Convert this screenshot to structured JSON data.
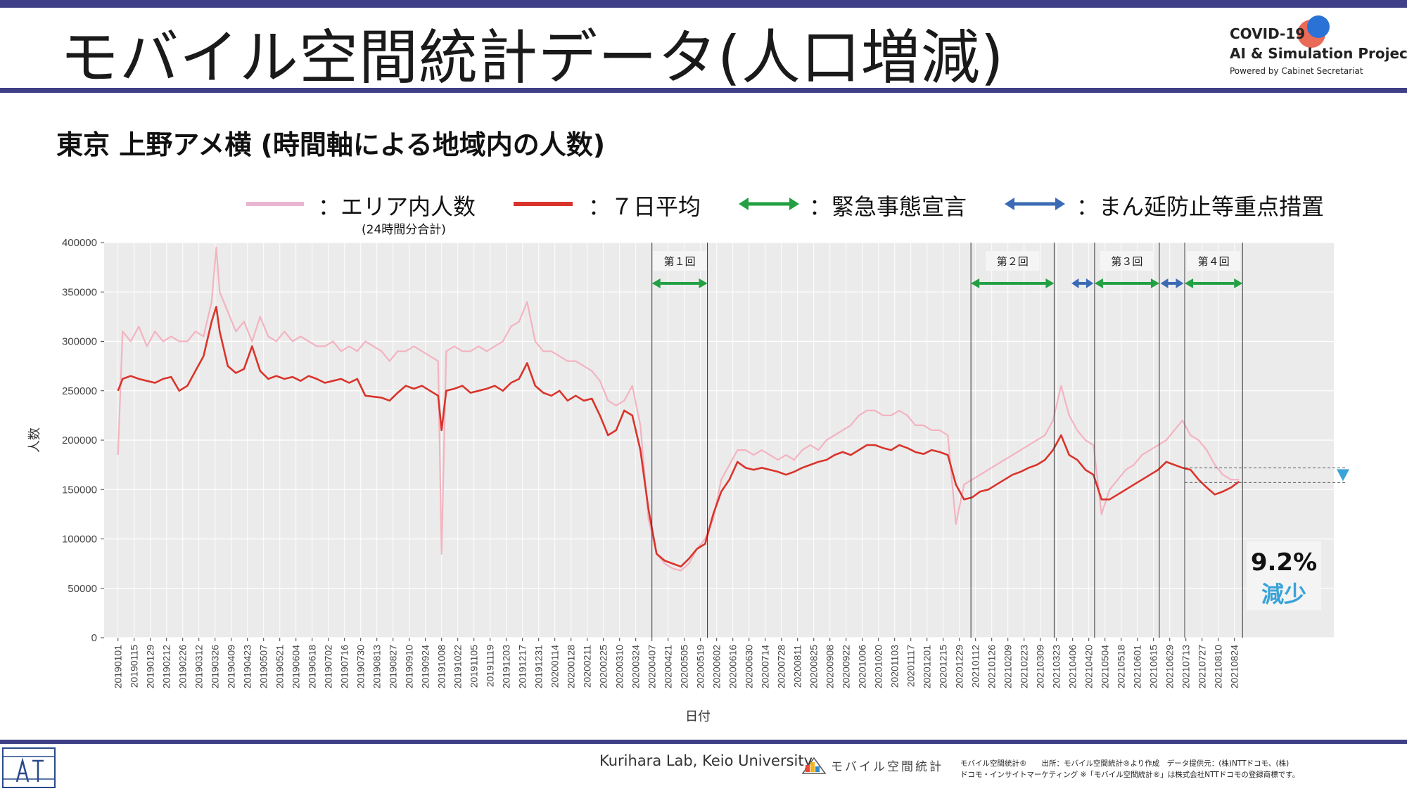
{
  "header": {
    "title": "モバイル空間統計データ(人口増減)",
    "logo_line1": "COVID-19",
    "logo_line2": "AI & Simulation Project",
    "logo_line3": "Powered by Cabinet Secretariat"
  },
  "subtitle": "東京 上野アメ横 (時間軸による地域内の人数)",
  "legend": {
    "daily_label": "：エリア内人数",
    "daily_sub": "(24時間分合計)",
    "avg_label": "：７日平均",
    "emergency_label": "：緊急事態宣言",
    "semi_label": "：まん延防止等重点措置"
  },
  "colors": {
    "daily": "#f4a9b8",
    "avg": "#d9342b",
    "emergency": "#22a043",
    "semi": "#3b6bb5",
    "plot_bg": "#ebebeb",
    "accent": "#3aa3d8",
    "header_bar": "#3e3f86"
  },
  "callout": {
    "percent": "9.2%",
    "decrease": "減少"
  },
  "chart_data": {
    "type": "line",
    "xlabel": "日付",
    "ylabel": "人数",
    "ylim": [
      0,
      400000
    ],
    "yticks": [
      0,
      50000,
      100000,
      150000,
      200000,
      250000,
      300000,
      350000,
      400000
    ],
    "x_tick_labels": [
      "20190101",
      "20190115",
      "20190129",
      "20190212",
      "20190226",
      "20190312",
      "20190326",
      "20190409",
      "20190423",
      "20190507",
      "20190521",
      "20190604",
      "20190618",
      "20190702",
      "20190716",
      "20190730",
      "20190813",
      "20190827",
      "20190910",
      "20190924",
      "20191008",
      "20191022",
      "20191105",
      "20191119",
      "20191203",
      "20191217",
      "20191231",
      "20200114",
      "20200128",
      "20200211",
      "20200225",
      "20200310",
      "20200324",
      "20200407",
      "20200421",
      "20200505",
      "20200519",
      "20200602",
      "20200616",
      "20200630",
      "20200714",
      "20200728",
      "20200811",
      "20200825",
      "20200908",
      "20200922",
      "20201006",
      "20201020",
      "20201103",
      "20201117",
      "20201201",
      "20201215",
      "20201229",
      "20210112",
      "20210126",
      "20210209",
      "20210223",
      "20210309",
      "20210323",
      "20210406",
      "20210420",
      "20210504",
      "20210518",
      "20210601",
      "20210615",
      "20210629",
      "20210713",
      "20210727",
      "20210810",
      "20210824"
    ],
    "grid": true,
    "legend_position": "top",
    "series": [
      {
        "name": "エリア内人数",
        "note": "(24時間分合計)",
        "style": "daily",
        "x": [
          "20190101",
          "20190105",
          "20190112",
          "20190119",
          "20190126",
          "20190202",
          "20190209",
          "20190216",
          "20190223",
          "20190302",
          "20190309",
          "20190316",
          "20190323",
          "20190327",
          "20190330",
          "20190406",
          "20190413",
          "20190420",
          "20190427",
          "20190504",
          "20190511",
          "20190518",
          "20190525",
          "20190601",
          "20190608",
          "20190615",
          "20190622",
          "20190629",
          "20190706",
          "20190713",
          "20190720",
          "20190727",
          "20190803",
          "20190810",
          "20190817",
          "20190824",
          "20190831",
          "20190907",
          "20190914",
          "20190921",
          "20190928",
          "20191005",
          "20191008",
          "20191012",
          "20191019",
          "20191026",
          "20191102",
          "20191109",
          "20191116",
          "20191123",
          "20191130",
          "20191207",
          "20191214",
          "20191221",
          "20191228",
          "20200104",
          "20200111",
          "20200118",
          "20200125",
          "20200201",
          "20200208",
          "20200215",
          "20200222",
          "20200229",
          "20200307",
          "20200314",
          "20200321",
          "20200328",
          "20200404",
          "20200411",
          "20200418",
          "20200425",
          "20200502",
          "20200509",
          "20200516",
          "20200523",
          "20200530",
          "20200606",
          "20200613",
          "20200620",
          "20200627",
          "20200704",
          "20200711",
          "20200718",
          "20200725",
          "20200801",
          "20200808",
          "20200815",
          "20200822",
          "20200829",
          "20200905",
          "20200912",
          "20200919",
          "20200926",
          "20201003",
          "20201010",
          "20201017",
          "20201024",
          "20201031",
          "20201107",
          "20201114",
          "20201121",
          "20201128",
          "20201205",
          "20201212",
          "20201219",
          "20201226",
          "20210102",
          "20210109",
          "20210116",
          "20210123",
          "20210130",
          "20210206",
          "20210213",
          "20210220",
          "20210227",
          "20210306",
          "20210313",
          "20210320",
          "20210327",
          "20210403",
          "20210410",
          "20210417",
          "20210424",
          "20210501",
          "20210508",
          "20210515",
          "20210522",
          "20210529",
          "20210605",
          "20210612",
          "20210619",
          "20210626",
          "20210703",
          "20210710",
          "20210717",
          "20210724",
          "20210731",
          "20210807",
          "20210814",
          "20210821",
          "20210828"
        ],
        "values": [
          185000,
          310000,
          300000,
          315000,
          295000,
          310000,
          300000,
          305000,
          300000,
          300000,
          310000,
          305000,
          340000,
          395000,
          350000,
          330000,
          310000,
          320000,
          300000,
          325000,
          305000,
          300000,
          310000,
          300000,
          305000,
          300000,
          295000,
          295000,
          300000,
          290000,
          295000,
          290000,
          300000,
          295000,
          290000,
          280000,
          290000,
          290000,
          295000,
          290000,
          285000,
          280000,
          85000,
          290000,
          295000,
          290000,
          290000,
          295000,
          290000,
          295000,
          300000,
          315000,
          320000,
          340000,
          300000,
          290000,
          290000,
          285000,
          280000,
          280000,
          275000,
          270000,
          260000,
          240000,
          235000,
          240000,
          255000,
          215000,
          120000,
          85000,
          75000,
          70000,
          68000,
          75000,
          90000,
          100000,
          120000,
          160000,
          175000,
          190000,
          190000,
          185000,
          190000,
          185000,
          180000,
          185000,
          180000,
          190000,
          195000,
          190000,
          200000,
          205000,
          210000,
          215000,
          225000,
          230000,
          230000,
          225000,
          225000,
          230000,
          225000,
          215000,
          215000,
          210000,
          210000,
          205000,
          115000,
          155000,
          160000,
          165000,
          170000,
          175000,
          180000,
          185000,
          190000,
          195000,
          200000,
          205000,
          220000,
          255000,
          225000,
          210000,
          200000,
          195000,
          125000,
          150000,
          160000,
          170000,
          175000,
          185000,
          190000,
          195000,
          200000,
          210000,
          220000,
          205000,
          200000,
          190000,
          175000,
          165000,
          160000,
          160000
        ]
      },
      {
        "name": "７日平均",
        "style": "avg",
        "x": [
          "20190101",
          "20190105",
          "20190112",
          "20190119",
          "20190126",
          "20190202",
          "20190209",
          "20190216",
          "20190223",
          "20190302",
          "20190309",
          "20190316",
          "20190323",
          "20190327",
          "20190330",
          "20190406",
          "20190413",
          "20190420",
          "20190427",
          "20190504",
          "20190511",
          "20190518",
          "20190525",
          "20190601",
          "20190608",
          "20190615",
          "20190622",
          "20190629",
          "20190706",
          "20190713",
          "20190720",
          "20190727",
          "20190803",
          "20190810",
          "20190817",
          "20190824",
          "20190831",
          "20190907",
          "20190914",
          "20190921",
          "20190928",
          "20191005",
          "20191008",
          "20191012",
          "20191019",
          "20191026",
          "20191102",
          "20191109",
          "20191116",
          "20191123",
          "20191130",
          "20191207",
          "20191214",
          "20191221",
          "20191228",
          "20200104",
          "20200111",
          "20200118",
          "20200125",
          "20200201",
          "20200208",
          "20200215",
          "20200222",
          "20200229",
          "20200307",
          "20200314",
          "20200321",
          "20200328",
          "20200404",
          "20200411",
          "20200418",
          "20200425",
          "20200502",
          "20200509",
          "20200516",
          "20200523",
          "20200530",
          "20200606",
          "20200613",
          "20200620",
          "20200627",
          "20200704",
          "20200711",
          "20200718",
          "20200725",
          "20200801",
          "20200808",
          "20200815",
          "20200822",
          "20200829",
          "20200905",
          "20200912",
          "20200919",
          "20200926",
          "20201003",
          "20201010",
          "20201017",
          "20201024",
          "20201031",
          "20201107",
          "20201114",
          "20201121",
          "20201128",
          "20201205",
          "20201212",
          "20201219",
          "20201226",
          "20210102",
          "20210109",
          "20210116",
          "20210123",
          "20210130",
          "20210206",
          "20210213",
          "20210220",
          "20210227",
          "20210306",
          "20210313",
          "20210320",
          "20210327",
          "20210403",
          "20210410",
          "20210417",
          "20210424",
          "20210501",
          "20210508",
          "20210515",
          "20210522",
          "20210529",
          "20210605",
          "20210612",
          "20210619",
          "20210626",
          "20210703",
          "20210710",
          "20210717",
          "20210724",
          "20210731",
          "20210807",
          "20210814",
          "20210821",
          "20210828"
        ],
        "values": [
          250000,
          262000,
          265000,
          262000,
          260000,
          258000,
          262000,
          264000,
          250000,
          255000,
          270000,
          285000,
          320000,
          335000,
          310000,
          275000,
          268000,
          272000,
          295000,
          270000,
          262000,
          265000,
          262000,
          264000,
          260000,
          265000,
          262000,
          258000,
          260000,
          262000,
          258000,
          262000,
          245000,
          244000,
          243000,
          240000,
          248000,
          255000,
          252000,
          255000,
          250000,
          245000,
          210000,
          250000,
          252000,
          255000,
          248000,
          250000,
          252000,
          255000,
          250000,
          258000,
          262000,
          278000,
          255000,
          248000,
          245000,
          250000,
          240000,
          245000,
          240000,
          242000,
          225000,
          205000,
          210000,
          230000,
          225000,
          190000,
          130000,
          85000,
          78000,
          75000,
          72000,
          80000,
          90000,
          95000,
          125000,
          148000,
          160000,
          178000,
          172000,
          170000,
          172000,
          170000,
          168000,
          165000,
          168000,
          172000,
          175000,
          178000,
          180000,
          185000,
          188000,
          185000,
          190000,
          195000,
          195000,
          192000,
          190000,
          195000,
          192000,
          188000,
          186000,
          190000,
          188000,
          185000,
          155000,
          140000,
          142000,
          148000,
          150000,
          155000,
          160000,
          165000,
          168000,
          172000,
          175000,
          180000,
          190000,
          205000,
          185000,
          180000,
          170000,
          165000,
          140000,
          140000,
          145000,
          150000,
          155000,
          160000,
          165000,
          170000,
          178000,
          175000,
          172000,
          170000,
          160000,
          152000,
          145000,
          148000,
          152000,
          158000
        ]
      }
    ],
    "periods": [
      {
        "label": "第１回",
        "type": "emergency",
        "start": "20200407",
        "end": "20200525"
      },
      {
        "label": "第２回",
        "type": "emergency",
        "start": "20210108",
        "end": "20210321"
      },
      {
        "label": "",
        "type": "semi",
        "start": "20210405",
        "end": "20210424"
      },
      {
        "label": "第３回",
        "type": "emergency",
        "start": "20210425",
        "end": "20210620"
      },
      {
        "label": "",
        "type": "semi",
        "start": "20210621",
        "end": "20210711"
      },
      {
        "label": "第４回",
        "type": "emergency",
        "start": "20210712",
        "end": "20210831"
      }
    ],
    "reference_levels": [
      172000,
      157000
    ],
    "annotation": "9.2% 減少"
  },
  "footer": {
    "lab": "Kurihara Lab, Keio University",
    "mobile_logo_text": "モバイル空間統計",
    "credit_line1": "モバイル空間統計®　　出所：モバイル空間統計®より作成　データ提供元：(株)NTTドコモ、(株)",
    "credit_line2": "ドコモ・インサイトマーケティング ※「モバイル空間統計®」は株式会社NTTドコモの登録商標です。"
  }
}
